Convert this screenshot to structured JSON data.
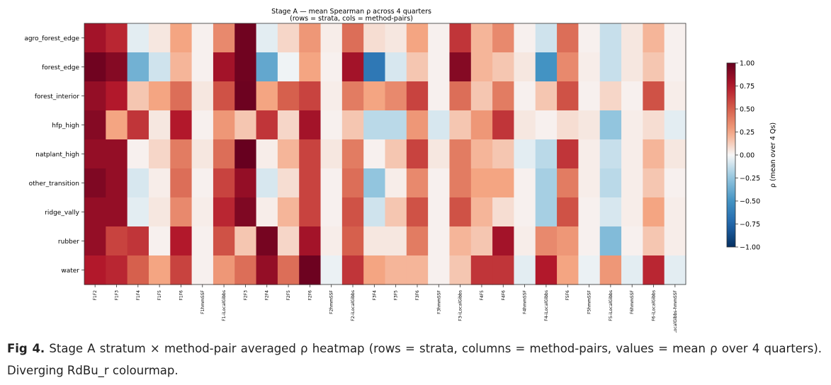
{
  "chart_data": {
    "type": "heatmap",
    "title": "Stage A — mean Spearman ρ across 4 quarters",
    "subtitle": "(rows = strata, cols = method-pairs)",
    "rows": [
      "agro_forest_edge",
      "forest_edge",
      "forest_interior",
      "hfp_high",
      "natplant_high",
      "other_transition",
      "ridge_vally",
      "rubber",
      "water"
    ],
    "columns": [
      "F1F2",
      "F1F3",
      "F1F4",
      "F1F5",
      "F1F6",
      "F1hmmSSF",
      "F1-iLocalGibbs",
      "F2F3",
      "F2F4",
      "F2F5",
      "F2F6",
      "F2hmmSSF",
      "F2-iLocalGibbs",
      "F3F4",
      "F3F5",
      "F3F6",
      "F3hmmSSF",
      "F3-iLocalGibbs",
      "F4F5",
      "F4F6",
      "F4hmmSSF",
      "F4-iLocalGibbs",
      "F5F6",
      "F5hmmSSF",
      "F5-iLocalGibbs",
      "F6hmmSSF",
      "F6-iLocalGibbs",
      "iLocalGibbs-hmmSSF"
    ],
    "values": [
      [
        0.8,
        0.7,
        -0.05,
        0.05,
        0.25,
        0.02,
        0.35,
        0.97,
        -0.05,
        0.1,
        0.3,
        0.03,
        0.45,
        0.08,
        0.05,
        0.25,
        0.02,
        0.65,
        0.2,
        0.35,
        0.02,
        -0.1,
        0.45,
        0.02,
        -0.12,
        0.05,
        0.2,
        0.02
      ],
      [
        0.97,
        0.9,
        -0.35,
        -0.1,
        0.2,
        0.02,
        0.8,
        0.97,
        -0.4,
        -0.02,
        0.25,
        0.02,
        0.8,
        -0.65,
        -0.08,
        0.15,
        0.02,
        0.9,
        0.2,
        0.15,
        0.05,
        -0.5,
        0.35,
        0.03,
        -0.12,
        0.05,
        0.15,
        0.02
      ],
      [
        0.85,
        0.75,
        0.15,
        0.25,
        0.45,
        0.05,
        0.55,
        0.98,
        0.25,
        0.5,
        0.6,
        0.03,
        0.4,
        0.25,
        0.35,
        0.6,
        0.02,
        0.45,
        0.15,
        0.4,
        0.02,
        0.15,
        0.55,
        0.02,
        0.1,
        0.02,
        0.55,
        0.03
      ],
      [
        0.9,
        0.25,
        0.65,
        0.05,
        0.75,
        0.02,
        0.3,
        0.15,
        0.65,
        0.1,
        0.8,
        0.02,
        0.15,
        -0.15,
        -0.15,
        0.3,
        -0.08,
        0.15,
        0.3,
        0.65,
        0.05,
        0.02,
        0.08,
        0.05,
        -0.25,
        0.03,
        0.08,
        -0.05
      ],
      [
        0.85,
        0.85,
        0.02,
        0.1,
        0.4,
        0.05,
        0.45,
        1.0,
        0.03,
        0.2,
        0.6,
        0.05,
        0.4,
        0.02,
        0.15,
        0.6,
        0.05,
        0.4,
        0.2,
        0.15,
        -0.05,
        -0.15,
        0.65,
        0.03,
        -0.12,
        0.03,
        0.2,
        0.05
      ],
      [
        0.92,
        0.85,
        -0.08,
        0.03,
        0.45,
        0.02,
        0.6,
        0.85,
        -0.08,
        0.08,
        0.6,
        0.02,
        0.45,
        -0.25,
        0.03,
        0.35,
        0.02,
        0.4,
        0.25,
        0.25,
        0.02,
        -0.2,
        0.4,
        0.03,
        -0.15,
        0.03,
        0.15,
        0.02
      ],
      [
        0.85,
        0.85,
        -0.05,
        0.05,
        0.35,
        0.03,
        0.7,
        0.92,
        0.03,
        0.2,
        0.6,
        0.02,
        0.55,
        -0.1,
        0.15,
        0.55,
        0.02,
        0.55,
        0.2,
        0.08,
        0.02,
        -0.2,
        0.55,
        0.02,
        -0.08,
        0.03,
        0.25,
        0.03
      ],
      [
        0.85,
        0.6,
        0.65,
        0.02,
        0.75,
        0.02,
        0.55,
        0.15,
        0.95,
        0.1,
        0.8,
        0.03,
        0.5,
        0.05,
        0.05,
        0.4,
        0.02,
        0.2,
        0.15,
        0.8,
        0.03,
        0.35,
        0.3,
        0.02,
        -0.3,
        0.02,
        0.15,
        0.03
      ],
      [
        0.75,
        0.7,
        0.5,
        0.25,
        0.6,
        0.02,
        0.3,
        0.45,
        0.85,
        0.45,
        0.98,
        -0.03,
        0.65,
        0.25,
        0.2,
        0.2,
        0.02,
        0.15,
        0.65,
        0.65,
        -0.05,
        0.75,
        0.25,
        -0.03,
        0.3,
        -0.05,
        0.7,
        -0.05
      ]
    ],
    "colormap": "RdBu_r",
    "vmin": -1.0,
    "vmax": 1.0,
    "colorbar_label": "ρ (mean over 4 Qs)",
    "colorbar_ticks": [
      "1.00",
      "0.75",
      "0.50",
      "0.25",
      "0.00",
      "−0.25",
      "−0.50",
      "−0.75",
      "−1.00"
    ],
    "colorbar_tick_values": [
      1.0,
      0.75,
      0.5,
      0.25,
      0.0,
      -0.25,
      -0.5,
      -0.75,
      -1.0
    ]
  },
  "caption": {
    "label": "Fig 4.",
    "text": " Stage A stratum × method-pair averaged ρ heatmap (rows = strata, columns = method-pairs, values = mean ρ over 4 quarters). Diverging RdBu_r colourmap."
  }
}
